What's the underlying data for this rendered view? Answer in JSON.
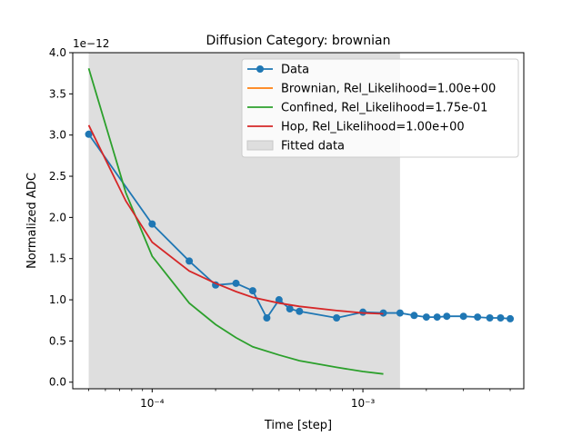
{
  "chart_data": {
    "type": "line",
    "title": "Diffusion Category: brownian",
    "xlabel": "Time [step]",
    "ylabel": "Normalized ADC",
    "y_offset_label": "1e−12",
    "x_scale": "log",
    "xlim": [
      4.2e-05,
      0.0058
    ],
    "ylim": [
      -0.08,
      4.0
    ],
    "grid": false,
    "legend_position": "top-right",
    "x_major_ticks": [
      {
        "value": 0.0001,
        "label": "10⁻⁴"
      },
      {
        "value": 0.001,
        "label": "10⁻³"
      }
    ],
    "y_ticks": [
      {
        "value": 0.0,
        "label": "0.0"
      },
      {
        "value": 0.5,
        "label": "0.5"
      },
      {
        "value": 1.0,
        "label": "1.0"
      },
      {
        "value": 1.5,
        "label": "1.5"
      },
      {
        "value": 2.0,
        "label": "2.0"
      },
      {
        "value": 2.5,
        "label": "2.5"
      },
      {
        "value": 3.0,
        "label": "3.0"
      },
      {
        "value": 3.5,
        "label": "3.5"
      },
      {
        "value": 4.0,
        "label": "4.0"
      }
    ],
    "fitted_region": {
      "name": "Fitted data",
      "x_start": 5e-05,
      "x_end": 0.0015,
      "color": "#dedede"
    },
    "series": [
      {
        "name": "Data",
        "color": "#1f77b4",
        "markers": true,
        "x": [
          5e-05,
          0.0001,
          0.00015,
          0.0002,
          0.00025,
          0.0003,
          0.00035,
          0.0004,
          0.00045,
          0.0005,
          0.00075,
          0.001,
          0.00125,
          0.0015,
          0.00175,
          0.002,
          0.00225,
          0.0025,
          0.003,
          0.0035,
          0.004,
          0.0045,
          0.005
        ],
        "y": [
          3.01,
          1.92,
          1.47,
          1.18,
          1.2,
          1.11,
          0.78,
          1.0,
          0.89,
          0.86,
          0.78,
          0.85,
          0.84,
          0.84,
          0.81,
          0.79,
          0.79,
          0.8,
          0.8,
          0.79,
          0.78,
          0.78,
          0.77
        ]
      },
      {
        "name": "Brownian, Rel_Likelihood=1.00e+00",
        "color": "#ff7f0e",
        "markers": false,
        "x": [],
        "y": []
      },
      {
        "name": "Confined, Rel_Likelihood=1.75e-01",
        "color": "#2ca02c",
        "markers": false,
        "x": [
          5e-05,
          7.5e-05,
          0.0001,
          0.00015,
          0.0002,
          0.00025,
          0.0003,
          0.0004,
          0.0005,
          0.00075,
          0.001,
          0.00125
        ],
        "y": [
          3.81,
          2.3,
          1.53,
          0.96,
          0.7,
          0.54,
          0.43,
          0.33,
          0.26,
          0.18,
          0.13,
          0.1
        ]
      },
      {
        "name": "Hop, Rel_Likelihood=1.00e+00",
        "color": "#d62728",
        "markers": false,
        "x": [
          5e-05,
          7.5e-05,
          0.0001,
          0.00015,
          0.0002,
          0.00025,
          0.0003,
          0.0004,
          0.0005,
          0.00075,
          0.001,
          0.00125
        ],
        "y": [
          3.12,
          2.2,
          1.7,
          1.35,
          1.2,
          1.1,
          1.03,
          0.96,
          0.92,
          0.87,
          0.84,
          0.83
        ]
      }
    ]
  }
}
